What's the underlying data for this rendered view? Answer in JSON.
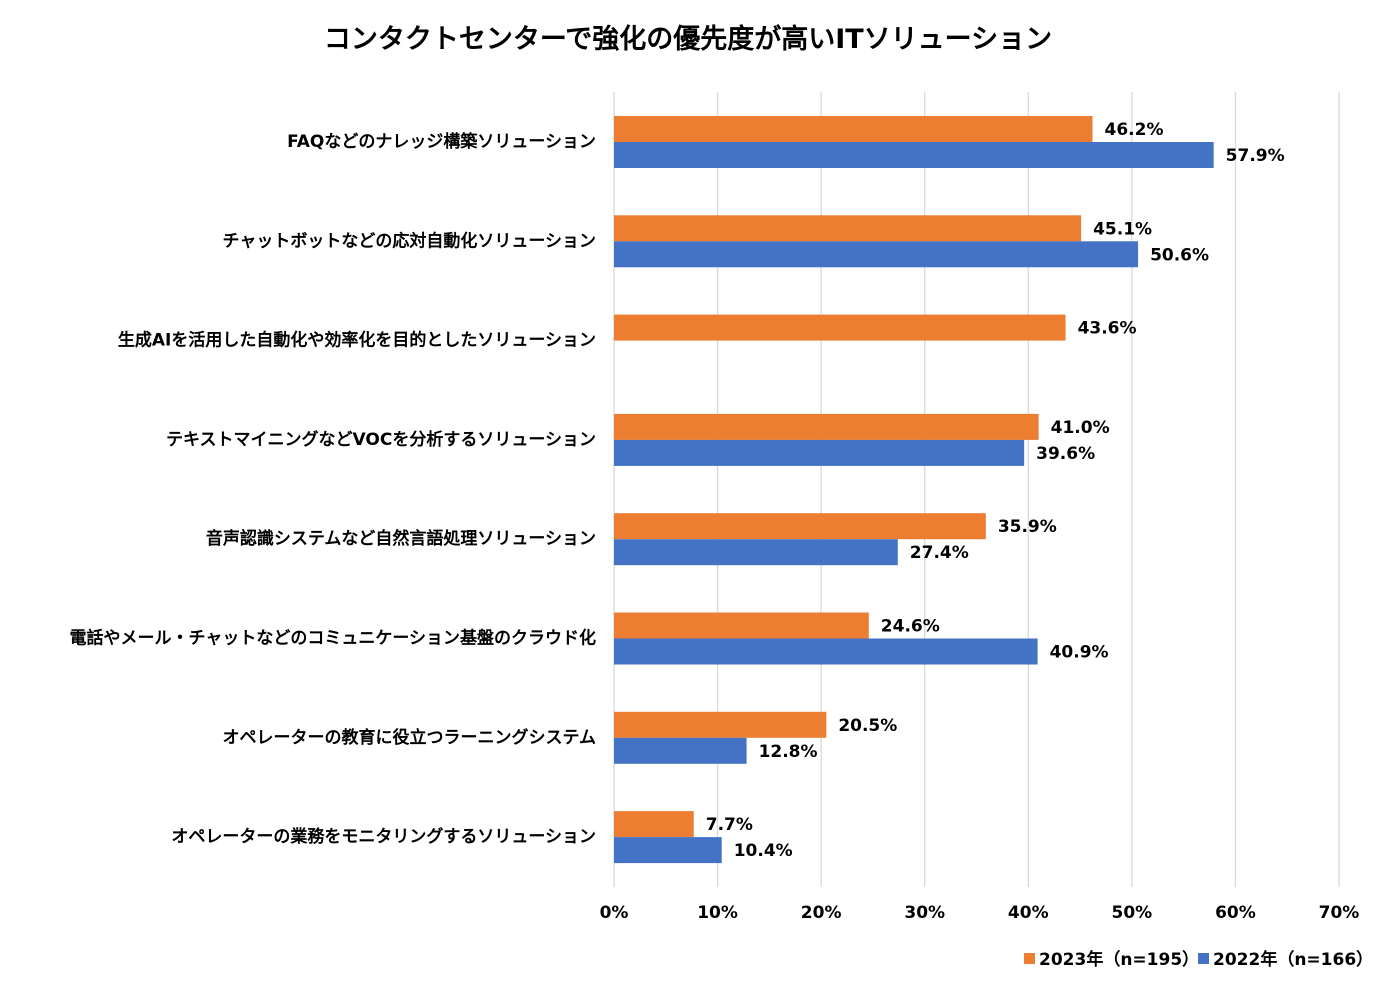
{
  "chart_data": {
    "type": "bar",
    "orientation": "horizontal",
    "title": "コンタクトセンターで強化の優先度が高いITソリューション",
    "categories": [
      "FAQなどのナレッジ構築ソリューション",
      "チャットボットなどの応対自動化ソリューション",
      "生成AIを活用した自動化や効率化を目的としたソリューション",
      "テキストマイニングなどVOCを分析するソリューション",
      "音声認識システムなど自然言語処理ソリューション",
      "電話やメール・チャットなどのコミュニケーション基盤のクラウド化",
      "オペレーターの教育に役立つラーニングシステム",
      "オペレーターの業務をモニタリングするソリューション"
    ],
    "series": [
      {
        "name": "2023年（n=195）",
        "color": "#ED7D31",
        "values": [
          46.2,
          45.1,
          43.6,
          41.0,
          35.9,
          24.6,
          20.5,
          7.7
        ],
        "labels": [
          "46.2%",
          "45.1%",
          "43.6%",
          "41.0%",
          "35.9%",
          "24.6%",
          "20.5%",
          "7.7%"
        ]
      },
      {
        "name": "2022年（n=166）",
        "color": "#4472C4",
        "values": [
          57.9,
          50.6,
          null,
          39.6,
          27.4,
          40.9,
          12.8,
          10.4
        ],
        "labels": [
          "57.9%",
          "50.6%",
          "",
          "39.6%",
          "27.4%",
          "40.9%",
          "12.8%",
          "10.4%"
        ]
      }
    ],
    "xlim": [
      0,
      70
    ],
    "xticks": [
      0,
      10,
      20,
      30,
      40,
      50,
      60,
      70
    ],
    "xtick_labels": [
      "0%",
      "10%",
      "20%",
      "30%",
      "40%",
      "50%",
      "60%",
      "70%"
    ],
    "grid": true,
    "grid_color": "#d9d9d9",
    "legend_position": "bottom-right"
  }
}
